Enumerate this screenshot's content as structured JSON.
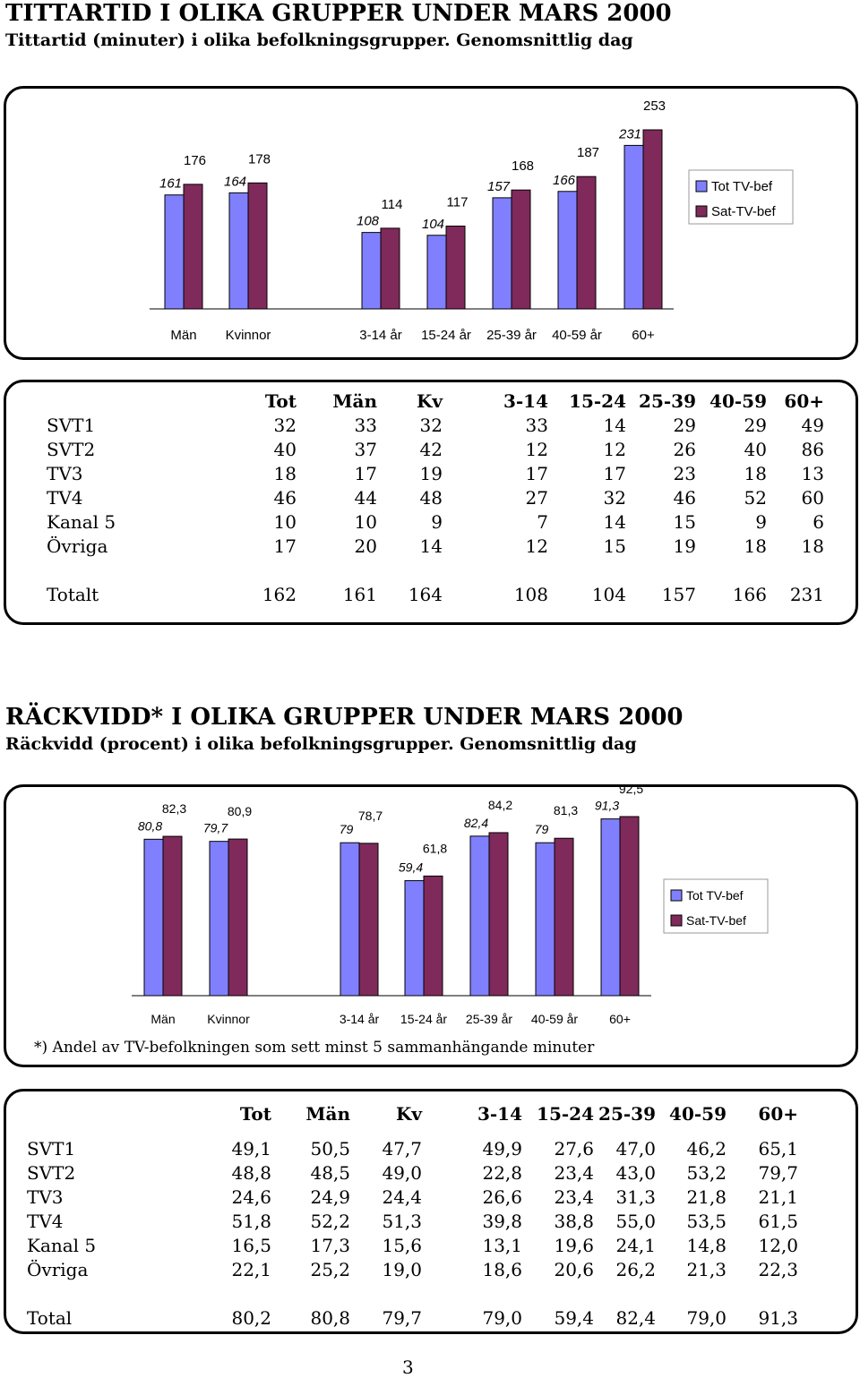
{
  "section1": {
    "title": "TITTARTID I OLIKA GRUPPER UNDER MARS 2000",
    "subtitle": "Tittartid (minuter) i olika befolkningsgrupper. Genomsnittlig dag"
  },
  "section2": {
    "title": "RÄCKVIDD* I OLIKA GRUPPER UNDER MARS 2000",
    "subtitle": "Räckvidd (procent) i olika befolkningsgrupper. Genomsnittlig dag",
    "footnote": "*) Andel av TV-befolkningen som sett minst 5 sammanhängande minuter"
  },
  "colors": {
    "tot": "#8080ff",
    "sat": "#7f2a5a"
  },
  "chart_data": [
    {
      "type": "bar",
      "categories": [
        "Män",
        "Kvinnor",
        "3-14 år",
        "15-24 år",
        "25-39 år",
        "40-59 år",
        "60+"
      ],
      "series": [
        {
          "name": "Tot TV-bef",
          "values": [
            161,
            164,
            108,
            104,
            157,
            166,
            231
          ],
          "labels": [
            "161",
            "164",
            "108",
            "104",
            "157",
            "166",
            "231"
          ]
        },
        {
          "name": "Sat-TV-bef",
          "values": [
            176,
            178,
            114,
            117,
            168,
            187,
            253
          ],
          "labels": [
            "176",
            "178",
            "114",
            "117",
            "168",
            "187",
            "253"
          ]
        }
      ],
      "ylim": [
        0,
        253
      ],
      "legend": "right",
      "grid": false
    },
    {
      "type": "bar",
      "categories": [
        "Män",
        "Kvinnor",
        "3-14 år",
        "15-24 år",
        "25-39 år",
        "40-59 år",
        "60+"
      ],
      "series": [
        {
          "name": "Tot TV-bef",
          "values": [
            80.8,
            79.7,
            79,
            59.4,
            82.4,
            79,
            91.3
          ],
          "labels": [
            "80,8",
            "79,7",
            "79",
            "59,4",
            "82,4",
            "79",
            "91,3"
          ]
        },
        {
          "name": "Sat-TV-bef",
          "values": [
            82.3,
            80.9,
            78.7,
            61.8,
            84.2,
            81.3,
            92.5
          ],
          "labels": [
            "82,3",
            "80,9",
            "78,7",
            "61,8",
            "84,2",
            "81,3",
            "92,5"
          ]
        }
      ],
      "ylim": [
        0,
        92.5
      ],
      "legend": "right",
      "grid": false
    }
  ],
  "table1": {
    "headers": [
      "Tot",
      "Män",
      "Kv",
      "3-14",
      "15-24",
      "25-39",
      "40-59",
      "60+"
    ],
    "rows": [
      {
        "label": "SVT1",
        "values": [
          "32",
          "33",
          "32",
          "33",
          "14",
          "29",
          "29",
          "49"
        ]
      },
      {
        "label": "SVT2",
        "values": [
          "40",
          "37",
          "42",
          "12",
          "12",
          "26",
          "40",
          "86"
        ]
      },
      {
        "label": "TV3",
        "values": [
          "18",
          "17",
          "19",
          "17",
          "17",
          "23",
          "18",
          "13"
        ]
      },
      {
        "label": "TV4",
        "values": [
          "46",
          "44",
          "48",
          "27",
          "32",
          "46",
          "52",
          "60"
        ]
      },
      {
        "label": "Kanal 5",
        "values": [
          "10",
          "10",
          "9",
          "7",
          "14",
          "15",
          "9",
          "6"
        ]
      },
      {
        "label": "Övriga",
        "values": [
          "17",
          "20",
          "14",
          "12",
          "15",
          "19",
          "18",
          "18"
        ]
      }
    ],
    "total": {
      "label": "Totalt",
      "values": [
        "162",
        "161",
        "164",
        "108",
        "104",
        "157",
        "166",
        "231"
      ]
    }
  },
  "table2": {
    "headers": [
      "Tot",
      "Män",
      "Kv",
      "3-14",
      "15-24",
      "25-39",
      "40-59",
      "60+"
    ],
    "rows": [
      {
        "label": "SVT1",
        "values": [
          "49,1",
          "50,5",
          "47,7",
          "49,9",
          "27,6",
          "47,0",
          "46,2",
          "65,1"
        ]
      },
      {
        "label": "SVT2",
        "values": [
          "48,8",
          "48,5",
          "49,0",
          "22,8",
          "23,4",
          "43,0",
          "53,2",
          "79,7"
        ]
      },
      {
        "label": "TV3",
        "values": [
          "24,6",
          "24,9",
          "24,4",
          "26,6",
          "23,4",
          "31,3",
          "21,8",
          "21,1"
        ]
      },
      {
        "label": "TV4",
        "values": [
          "51,8",
          "52,2",
          "51,3",
          "39,8",
          "38,8",
          "55,0",
          "53,5",
          "61,5"
        ]
      },
      {
        "label": "Kanal 5",
        "values": [
          "16,5",
          "17,3",
          "15,6",
          "13,1",
          "19,6",
          "24,1",
          "14,8",
          "12,0"
        ]
      },
      {
        "label": "Övriga",
        "values": [
          "22,1",
          "25,2",
          "19,0",
          "18,6",
          "20,6",
          "26,2",
          "21,3",
          "22,3"
        ]
      }
    ],
    "total": {
      "label": "Total",
      "values": [
        "80,2",
        "80,8",
        "79,7",
        "79,0",
        "59,4",
        "82,4",
        "79,0",
        "91,3"
      ]
    }
  },
  "page_number": "3"
}
